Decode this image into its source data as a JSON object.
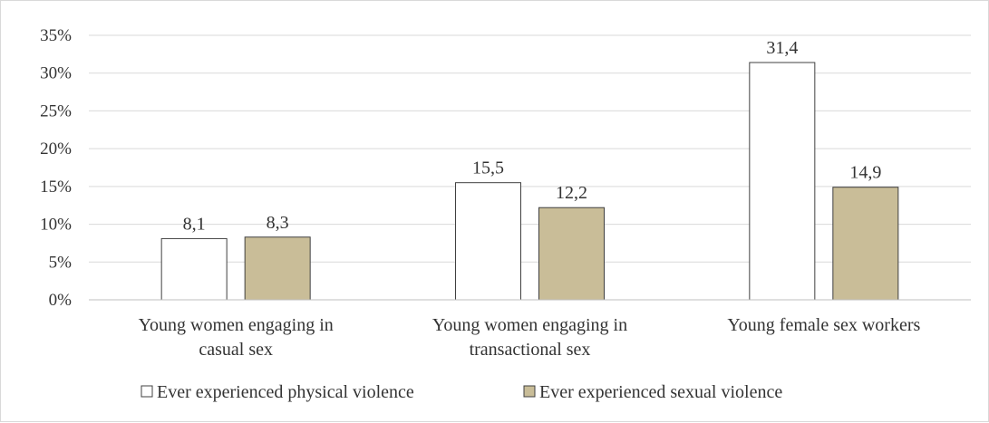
{
  "chart_data": {
    "type": "bar",
    "categories": [
      [
        "Young women engaging in",
        "casual sex"
      ],
      [
        "Young women engaging in",
        "transactional sex"
      ],
      [
        "Young female sex workers"
      ]
    ],
    "series": [
      {
        "name": "Ever experienced physical violence",
        "color": "#ffffff",
        "values": [
          8.1,
          15.5,
          31.4
        ],
        "labels": [
          "8,1",
          "15,5",
          "31,4"
        ]
      },
      {
        "name": "Ever experienced sexual violence",
        "color": "#c9bd98",
        "values": [
          8.3,
          12.2,
          14.9
        ],
        "labels": [
          "8,3",
          "12,2",
          "14,9"
        ]
      }
    ],
    "yticks": [
      "0%",
      "5%",
      "10%",
      "15%",
      "20%",
      "25%",
      "30%",
      "35%"
    ],
    "ylim": [
      0,
      35
    ],
    "grid": true,
    "legend": "bottom",
    "title": "",
    "xlabel": "",
    "ylabel": ""
  }
}
